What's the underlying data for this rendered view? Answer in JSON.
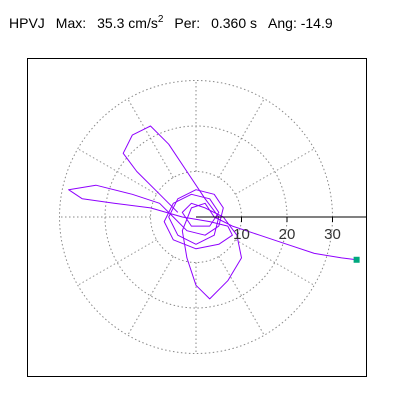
{
  "header": {
    "station": "HPVJ",
    "max_label": "Max:",
    "max_value": "35.3",
    "max_unit": "cm/s",
    "max_unit_exp": "2",
    "per_label": "Per:",
    "per_value": "0.360 s",
    "ang_label": "Ang:",
    "ang_value": "-14.9"
  },
  "chart_data": {
    "type": "scatter",
    "description_type": "polar particle-motion trace",
    "unit": "cm/s^2",
    "r_ticks": [
      10,
      20,
      30
    ],
    "r_tick_labels": [
      "10",
      "20",
      "30"
    ],
    "grid_rings": [
      10,
      20,
      30
    ],
    "grid_spokes_deg": [
      0,
      30,
      60,
      90,
      120,
      150,
      180,
      210,
      240,
      270,
      300,
      330
    ],
    "grid": true,
    "max_amplitude": 35.3,
    "max_angle_deg": -14.9,
    "colors": {
      "trace": "#8f00ff",
      "marker": "#00a87e",
      "axis": "#000000",
      "grid": "#888888"
    },
    "trace": [
      [
        -4.0,
        1.0
      ],
      [
        -6.0,
        3.0
      ],
      [
        -9.0,
        6.0
      ],
      [
        -13.0,
        10.0
      ],
      [
        -16.0,
        14.0
      ],
      [
        -14.0,
        18.0
      ],
      [
        -10.0,
        20.0
      ],
      [
        -6.0,
        16.0
      ],
      [
        -2.0,
        10.0
      ],
      [
        2.0,
        4.0
      ],
      [
        5.0,
        0.0
      ],
      [
        4.0,
        -4.0
      ],
      [
        0.0,
        -6.0
      ],
      [
        -4.0,
        -4.0
      ],
      [
        -6.0,
        0.0
      ],
      [
        -4.0,
        4.0
      ],
      [
        0.0,
        6.0
      ],
      [
        4.0,
        5.0
      ],
      [
        6.0,
        2.0
      ],
      [
        5.0,
        -2.0
      ],
      [
        2.0,
        -4.0
      ],
      [
        -2.0,
        -3.0
      ],
      [
        -5.0,
        0.0
      ],
      [
        -8.0,
        3.0
      ],
      [
        -14.0,
        5.0
      ],
      [
        -22.0,
        7.0
      ],
      [
        -28.0,
        6.0
      ],
      [
        -25.0,
        4.0
      ],
      [
        -18.0,
        3.0
      ],
      [
        -10.0,
        2.0
      ],
      [
        -3.0,
        0.0
      ],
      [
        3.0,
        -1.0
      ],
      [
        7.0,
        -2.0
      ],
      [
        8.0,
        -4.0
      ],
      [
        5.0,
        -6.0
      ],
      [
        0.0,
        -7.0
      ],
      [
        -5.0,
        -5.0
      ],
      [
        -7.0,
        -1.0
      ],
      [
        -5.0,
        3.0
      ],
      [
        -1.0,
        5.0
      ],
      [
        3.0,
        4.0
      ],
      [
        5.0,
        1.0
      ],
      [
        3.0,
        -2.0
      ],
      [
        -1.0,
        -2.0
      ],
      [
        -3.0,
        1.0
      ],
      [
        -1.0,
        3.0
      ],
      [
        2.0,
        2.0
      ],
      [
        6.0,
        0.0
      ],
      [
        9.0,
        -4.0
      ],
      [
        10.0,
        -9.0
      ],
      [
        7.0,
        -14.0
      ],
      [
        3.0,
        -18.0
      ],
      [
        0.0,
        -15.0
      ],
      [
        -2.0,
        -9.0
      ],
      [
        -3.0,
        -3.0
      ],
      [
        -1.0,
        2.0
      ],
      [
        2.0,
        3.0
      ],
      [
        4.0,
        0.0
      ],
      [
        8.0,
        -2.0
      ],
      [
        14.0,
        -4.0
      ],
      [
        20.0,
        -6.0
      ],
      [
        26.0,
        -8.0
      ],
      [
        32.0,
        -9.0
      ],
      [
        35.3,
        -9.4
      ]
    ]
  }
}
